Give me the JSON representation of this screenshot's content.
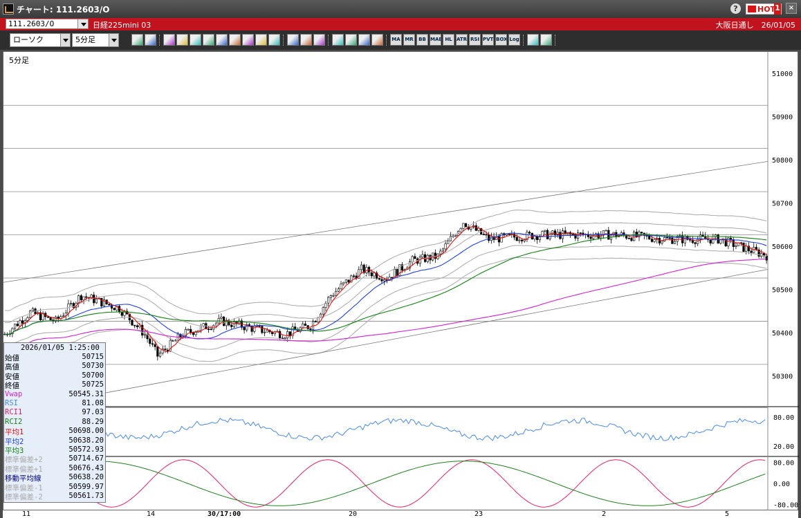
{
  "window": {
    "title": "チャート: 111.2603/O"
  },
  "header": {
    "symbol": "111.2603/O",
    "contract": "日経225mini 03",
    "session": "大阪日通し　26/01/05",
    "hot_label": "HOT",
    "hot_number": "1"
  },
  "toolbar": {
    "chart_type": "ローソク",
    "timeframe": "5分足",
    "icons": [
      "zoom-icon",
      "crosshair-icon",
      "trendline-icon",
      "draw-icon",
      "cursor-icon",
      "undo-icon",
      "memo-icon",
      "trash-icon",
      "candle-icon",
      "candle2-icon",
      "delete-all-icon",
      "settings-icon",
      "wrench-icon",
      "color-icon",
      "download-icon",
      "search-icon",
      "chart-icon",
      "tick-icon",
      "blank-icon"
    ],
    "indicators": [
      "MA",
      "MR",
      "BB",
      "MAE",
      "HL",
      "ATR",
      "RSI",
      "PVT",
      "BOX",
      "Log"
    ]
  },
  "chart": {
    "timeframe_label": "5分足",
    "price_ticks": [
      "51000",
      "50900",
      "50800",
      "50700",
      "50600",
      "50500",
      "50400",
      "50300"
    ],
    "rsi_ticks": [
      "80.00",
      "20.00"
    ],
    "rci_ticks": [
      "80.00",
      "0.00",
      "-80.00"
    ],
    "x_labels": [
      "11",
      "14",
      "30/17:00",
      "20",
      "23",
      "2",
      "5"
    ]
  },
  "info_panel": {
    "datetime": "2026/01/05 1:25:00",
    "rows": [
      {
        "label": "始値",
        "value": "50715",
        "color": "#000"
      },
      {
        "label": "高値",
        "value": "50730",
        "color": "#000"
      },
      {
        "label": "安値",
        "value": "50700",
        "color": "#000"
      },
      {
        "label": "終値",
        "value": "50725",
        "color": "#000"
      },
      {
        "label": "Vwap",
        "value": "50545.31",
        "color": "#d020d0"
      },
      {
        "label": "RSI",
        "value": "81.08",
        "color": "#4a8ae0"
      },
      {
        "label": "RCI1",
        "value": "97.03",
        "color": "#e0206a"
      },
      {
        "label": "RCI2",
        "value": "88.29",
        "color": "#208020"
      },
      {
        "label": "平均1",
        "value": "50698.00",
        "color": "#e01010"
      },
      {
        "label": "平均2",
        "value": "50638.20",
        "color": "#2040e0"
      },
      {
        "label": "平均3",
        "value": "50572.93",
        "color": "#108010"
      },
      {
        "label": "標準偏差+2",
        "value": "50714.67",
        "color": "#aaa"
      },
      {
        "label": "標準偏差+1",
        "value": "50676.43",
        "color": "#aaa"
      },
      {
        "label": "移動平均線",
        "value": "50638.20",
        "color": "#000080"
      },
      {
        "label": "標準偏差-1",
        "value": "50599.97",
        "color": "#aaa"
      },
      {
        "label": "標準偏差-2",
        "value": "50561.73",
        "color": "#aaa"
      }
    ]
  },
  "colors": {
    "ma1": "#e01010",
    "ma2": "#2040e0",
    "ma3": "#108010",
    "vwap": "#d020d0",
    "rsi": "#4a8ae0",
    "rci1": "#e0206a",
    "rci2": "#208020",
    "band": "#b0b0b0"
  }
}
